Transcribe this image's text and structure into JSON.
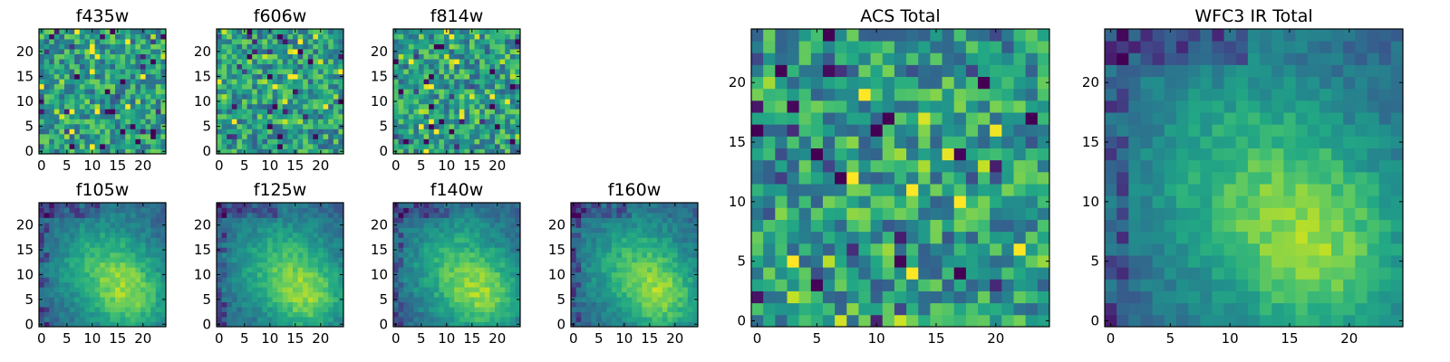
{
  "chart_data": [
    {
      "type": "heatmap",
      "title": "f435w",
      "xticks": [
        "0",
        "5",
        "10",
        "15",
        "20"
      ],
      "yticks": [
        "0",
        "5",
        "10",
        "15",
        "20"
      ],
      "xlim": [
        -0.5,
        24.5
      ],
      "ylim": [
        -0.5,
        24.5
      ],
      "grid": false,
      "legend": "none",
      "colormap": "viridis",
      "pattern": "noise"
    },
    {
      "type": "heatmap",
      "title": "f606w",
      "xticks": [
        "0",
        "5",
        "10",
        "15",
        "20"
      ],
      "yticks": [
        "0",
        "5",
        "10",
        "15",
        "20"
      ],
      "xlim": [
        -0.5,
        24.5
      ],
      "ylim": [
        -0.5,
        24.5
      ],
      "grid": false,
      "legend": "none",
      "colormap": "viridis",
      "pattern": "noise"
    },
    {
      "type": "heatmap",
      "title": "f814w",
      "xticks": [
        "0",
        "5",
        "10",
        "15",
        "20"
      ],
      "yticks": [
        "0",
        "5",
        "10",
        "15",
        "20"
      ],
      "xlim": [
        -0.5,
        24.5
      ],
      "ylim": [
        -0.5,
        24.5
      ],
      "grid": false,
      "legend": "none",
      "colormap": "viridis",
      "pattern": "noise"
    },
    {
      "type": "heatmap",
      "title": "f105w",
      "xticks": [
        "0",
        "5",
        "10",
        "15",
        "20"
      ],
      "yticks": [
        "0",
        "5",
        "10",
        "15",
        "20"
      ],
      "xlim": [
        -0.5,
        24.5
      ],
      "ylim": [
        -0.5,
        24.5
      ],
      "grid": false,
      "legend": "none",
      "colormap": "viridis",
      "pattern": "smooth"
    },
    {
      "type": "heatmap",
      "title": "f125w",
      "xticks": [
        "0",
        "5",
        "10",
        "15",
        "20"
      ],
      "yticks": [
        "0",
        "5",
        "10",
        "15",
        "20"
      ],
      "xlim": [
        -0.5,
        24.5
      ],
      "ylim": [
        -0.5,
        24.5
      ],
      "grid": false,
      "legend": "none",
      "colormap": "viridis",
      "pattern": "smooth"
    },
    {
      "type": "heatmap",
      "title": "f140w",
      "xticks": [
        "0",
        "5",
        "10",
        "15",
        "20"
      ],
      "yticks": [
        "0",
        "5",
        "10",
        "15",
        "20"
      ],
      "xlim": [
        -0.5,
        24.5
      ],
      "ylim": [
        -0.5,
        24.5
      ],
      "grid": false,
      "legend": "none",
      "colormap": "viridis",
      "pattern": "smooth"
    },
    {
      "type": "heatmap",
      "title": "f160w",
      "xticks": [
        "0",
        "5",
        "10",
        "15",
        "20"
      ],
      "yticks": [
        "0",
        "5",
        "10",
        "15",
        "20"
      ],
      "xlim": [
        -0.5,
        24.5
      ],
      "ylim": [
        -0.5,
        24.5
      ],
      "grid": false,
      "legend": "none",
      "colormap": "viridis",
      "pattern": "smooth"
    },
    {
      "type": "heatmap",
      "title": "ACS Total",
      "xticks": [
        "0",
        "5",
        "10",
        "15",
        "20"
      ],
      "yticks": [
        "0",
        "5",
        "10",
        "15",
        "20"
      ],
      "xlim": [
        -0.5,
        24.5
      ],
      "ylim": [
        -0.5,
        24.5
      ],
      "grid": false,
      "legend": "none",
      "colormap": "viridis",
      "pattern": "noise"
    },
    {
      "type": "heatmap",
      "title": "WFC3 IR Total",
      "xticks": [
        "0",
        "5",
        "10",
        "15",
        "20"
      ],
      "yticks": [
        "0",
        "5",
        "10",
        "15",
        "20"
      ],
      "xlim": [
        -0.5,
        24.5
      ],
      "ylim": [
        -0.5,
        24.5
      ],
      "grid": false,
      "legend": "none",
      "colormap": "viridis",
      "pattern": "smooth"
    }
  ]
}
